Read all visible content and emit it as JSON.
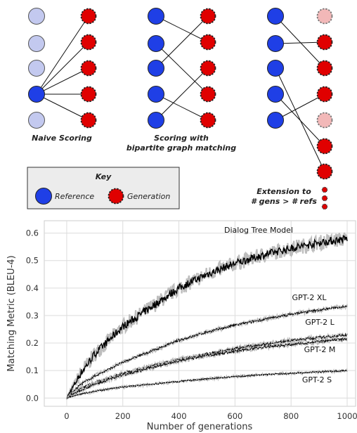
{
  "diagram": {
    "captions": {
      "naive": "Naive Scoring",
      "bipartite_line1": "Scoring with",
      "bipartite_line2": "bipartite graph matching",
      "extension_line1": "Extension to",
      "extension_line2": "# gens > # refs"
    },
    "key": {
      "title": "Key",
      "reference_label": "Reference",
      "generation_label": "Generation"
    },
    "colors": {
      "reference_fill": "#1f3fe6",
      "reference_faded_fill": "#c3c9ef",
      "generation_fill": "#e00000",
      "generation_faded_fill": "#f2b8b8",
      "key_background": "#ececec"
    }
  },
  "chart_data": {
    "type": "line",
    "title": "",
    "xlabel": "Number of generations",
    "ylabel": "Matching Metric (BLEU-4)",
    "xlim": [
      -80,
      1030
    ],
    "ylim": [
      -0.03,
      0.645
    ],
    "xticks": [
      "0",
      "200",
      "400",
      "600",
      "800",
      "1000"
    ],
    "yticks": [
      "0.0",
      "0.1",
      "0.2",
      "0.3",
      "0.4",
      "0.5",
      "0.6"
    ],
    "grid": true,
    "series": [
      {
        "name": "Dialog Tree Model",
        "x": [
          0,
          50,
          100,
          200,
          300,
          400,
          500,
          600,
          700,
          800,
          900,
          1000
        ],
        "values": [
          0.0,
          0.09,
          0.16,
          0.26,
          0.33,
          0.4,
          0.45,
          0.49,
          0.52,
          0.545,
          0.565,
          0.58
        ]
      },
      {
        "name": "GPT-2 XL",
        "x": [
          0,
          50,
          100,
          200,
          300,
          400,
          500,
          600,
          700,
          800,
          900,
          1000
        ],
        "values": [
          0.0,
          0.05,
          0.08,
          0.13,
          0.17,
          0.21,
          0.24,
          0.265,
          0.285,
          0.305,
          0.32,
          0.335
        ]
      },
      {
        "name": "GPT-2 L",
        "x": [
          0,
          50,
          100,
          200,
          300,
          400,
          500,
          600,
          700,
          800,
          900,
          1000
        ],
        "values": [
          0.0,
          0.035,
          0.055,
          0.09,
          0.115,
          0.14,
          0.16,
          0.18,
          0.195,
          0.21,
          0.22,
          0.23
        ]
      },
      {
        "name": "GPT-2 M",
        "x": [
          0,
          50,
          100,
          200,
          300,
          400,
          500,
          600,
          700,
          800,
          900,
          1000
        ],
        "values": [
          0.0,
          0.03,
          0.05,
          0.085,
          0.11,
          0.135,
          0.155,
          0.17,
          0.185,
          0.195,
          0.205,
          0.215
        ]
      },
      {
        "name": "GPT-2 S",
        "x": [
          0,
          50,
          100,
          200,
          300,
          400,
          500,
          600,
          700,
          800,
          900,
          1000
        ],
        "values": [
          0.0,
          0.015,
          0.025,
          0.04,
          0.05,
          0.06,
          0.07,
          0.078,
          0.085,
          0.09,
          0.095,
          0.1
        ]
      }
    ]
  }
}
